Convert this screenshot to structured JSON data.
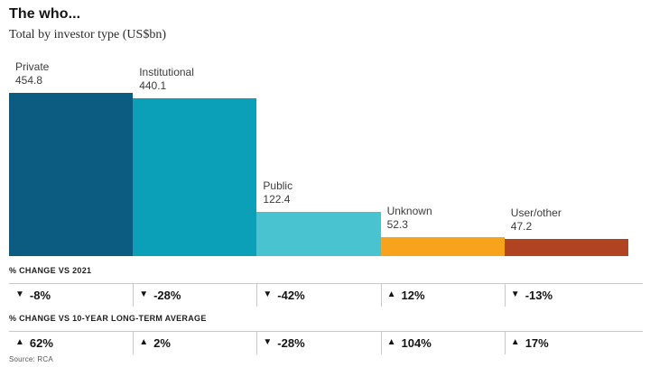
{
  "header": {
    "title": "The who...",
    "subtitle": "Total by investor type (US$bn)"
  },
  "icons": {
    "up_triangle": "▲",
    "down_triangle": "▼"
  },
  "chart_data": {
    "type": "bar",
    "title": "The who...",
    "subtitle": "Total by investor type (US$bn)",
    "unit": "US$bn",
    "categories": [
      "Private",
      "Institutional",
      "Public",
      "Unknown",
      "User/other"
    ],
    "values": [
      454.8,
      440.1,
      122.4,
      52.3,
      47.2
    ],
    "value_labels": [
      "454.8",
      "440.1",
      "122.4",
      "52.3",
      "47.2"
    ],
    "bar_colors": [
      "#0c5c82",
      "#0c9fb8",
      "#4ac3d0",
      "#f7a41c",
      "#b04320"
    ],
    "ylim": [
      0,
      455
    ],
    "grid": false,
    "legend": "none",
    "rows": [
      {
        "label": "% CHANGE VS 2021",
        "values": [
          -8,
          -28,
          -42,
          12,
          -13
        ],
        "display": [
          "-8%",
          "-28%",
          "-42%",
          "12%",
          "-13%"
        ],
        "directions": [
          "down",
          "down",
          "down",
          "up",
          "down"
        ]
      },
      {
        "label": "% CHANGE VS 10-YEAR LONG-TERM AVERAGE",
        "values": [
          62,
          2,
          -28,
          104,
          17
        ],
        "display": [
          "62%",
          "2%",
          "-28%",
          "104%",
          "17%"
        ],
        "directions": [
          "up",
          "up",
          "down",
          "up",
          "up"
        ]
      }
    ],
    "source": "Source: RCA"
  }
}
